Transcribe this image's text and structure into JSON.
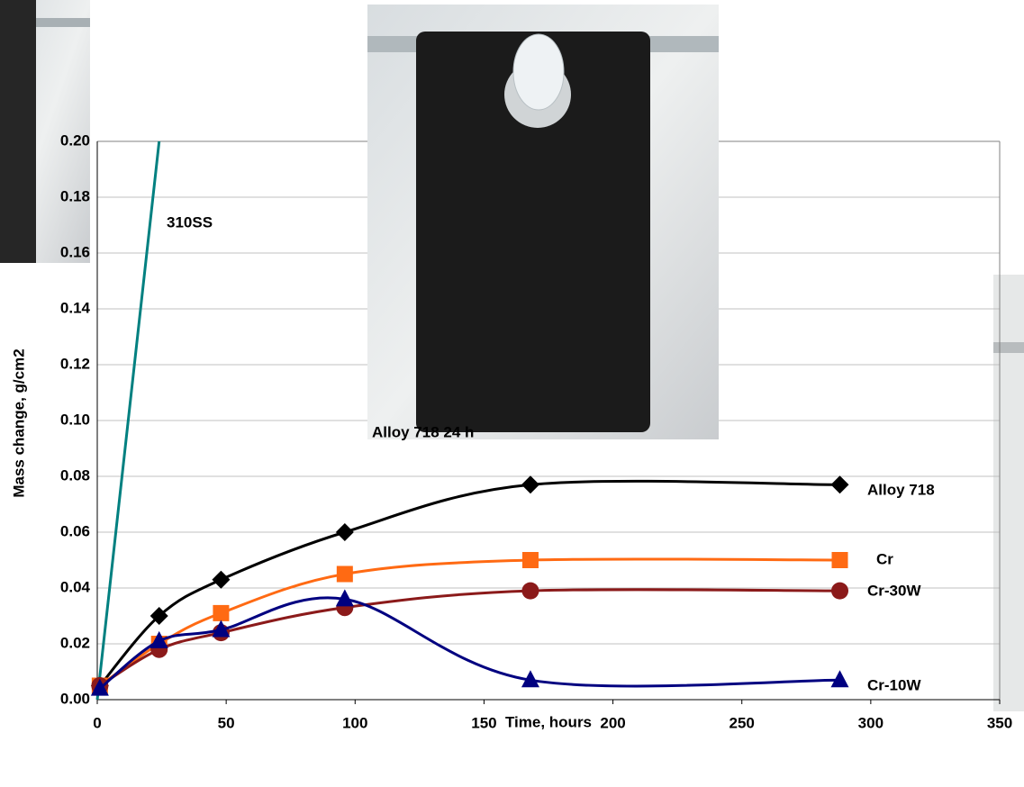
{
  "chart_data": {
    "type": "line",
    "x_label": "Time, hours",
    "y_label": "Mass change, g/cm2",
    "annotation": "Alloy 718 24 h",
    "xlim": [
      0,
      350
    ],
    "xticks": [
      0,
      50,
      100,
      150,
      200,
      250,
      300,
      350
    ],
    "ylim": [
      0,
      0.2
    ],
    "yticks": [
      {
        "value": 0,
        "label": "0.00"
      },
      0.02,
      0.04,
      0.06,
      0.08,
      {
        "value": 0.1,
        "label": "0.10"
      },
      0.12,
      0.14,
      0.16,
      0.18,
      {
        "value": 0.2,
        "label": "0.20"
      }
    ],
    "grid": true,
    "series": [
      {
        "name": "310SS",
        "color": "#008080",
        "marker": "none",
        "x": [
          0,
          24
        ],
        "values": [
          0,
          0.2
        ]
      },
      {
        "name": "Alloy 718",
        "color": "#000000",
        "marker": "diamond",
        "x": [
          1,
          24,
          48,
          96,
          168,
          288
        ],
        "values": [
          0.005,
          0.03,
          0.043,
          0.06,
          0.077,
          0.077
        ]
      },
      {
        "name": "Cr",
        "color": "#ff6a13",
        "marker": "square",
        "x": [
          1,
          24,
          48,
          96,
          168,
          288
        ],
        "values": [
          0.005,
          0.02,
          0.031,
          0.045,
          0.05,
          0.05
        ]
      },
      {
        "name": "Cr-30W",
        "color": "#8b1a1a",
        "marker": "circle",
        "x": [
          1,
          24,
          48,
          96,
          168,
          288
        ],
        "values": [
          0.005,
          0.018,
          0.024,
          0.033,
          0.039,
          0.039
        ]
      },
      {
        "name": "Cr-10W",
        "color": "#000080",
        "marker": "triangle",
        "x": [
          1,
          24,
          48,
          96,
          168,
          288
        ],
        "values": [
          0.004,
          0.021,
          0.025,
          0.036,
          0.007,
          0.007
        ]
      }
    ]
  }
}
